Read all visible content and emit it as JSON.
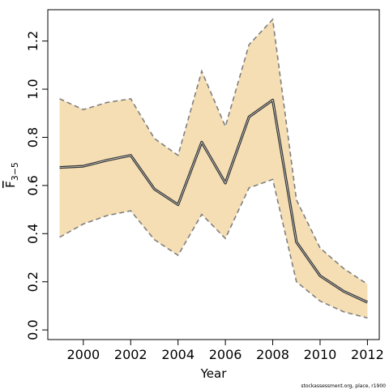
{
  "chart_data": {
    "type": "line",
    "xlabel": "Year",
    "ylabel": "F",
    "ylabel_sub": "3−5",
    "xlim": [
      1998.5,
      2012.5
    ],
    "ylim": [
      -0.04,
      1.33
    ],
    "x_ticks": [
      2000,
      2002,
      2004,
      2006,
      2008,
      2010,
      2012
    ],
    "y_ticks": [
      0.0,
      0.2,
      0.4,
      0.6,
      0.8,
      1.0,
      1.2
    ],
    "x_tick_labels": [
      "2000",
      "2002",
      "2004",
      "2006",
      "2008",
      "2010",
      "2012"
    ],
    "y_tick_labels": [
      "0.0",
      "0.2",
      "0.4",
      "0.6",
      "0.8",
      "1.0",
      "1.2"
    ],
    "x": [
      1999,
      2000,
      2001,
      2002,
      2003,
      2004,
      2005,
      2006,
      2007,
      2008,
      2009,
      2010,
      2011,
      2012
    ],
    "series": [
      {
        "values": [
          0.675,
          0.68,
          0.705,
          0.725,
          0.585,
          0.52,
          0.78,
          0.61,
          0.885,
          0.955,
          0.365,
          0.225,
          0.16,
          0.115
        ]
      }
    ],
    "upper": [
      0.96,
      0.915,
      0.945,
      0.96,
      0.795,
      0.725,
      1.075,
      0.845,
      1.185,
      1.29,
      0.54,
      0.34,
      0.255,
      0.19
    ],
    "lower": [
      0.385,
      0.44,
      0.475,
      0.495,
      0.375,
      0.31,
      0.48,
      0.38,
      0.59,
      0.625,
      0.2,
      0.12,
      0.075,
      0.05
    ],
    "band_color": "#F5DEB3",
    "line_color": "#333333",
    "band_edge_color": "#7f7f7f",
    "grid": false
  },
  "credit": "stockassessment.org, place, r1900"
}
